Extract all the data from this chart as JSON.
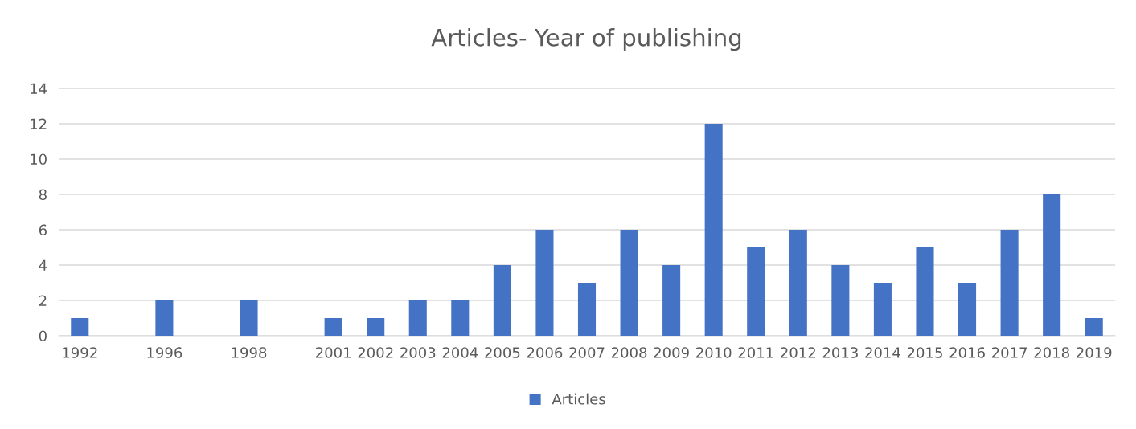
{
  "chart_data": {
    "type": "bar",
    "title": "Articles- Year of publishing",
    "categories": [
      "1992",
      null,
      "1996",
      null,
      "1998",
      null,
      "2001",
      "2002",
      "2003",
      "2004",
      "2005",
      "2006",
      "2007",
      "2008",
      "2009",
      "2010",
      "2011",
      "2012",
      "2013",
      "2014",
      "2015",
      "2016",
      "2017",
      "2018",
      "2019"
    ],
    "series": [
      {
        "name": "Articles",
        "color": "#4472c4",
        "values": [
          1,
          null,
          2,
          null,
          2,
          null,
          1,
          1,
          2,
          2,
          4,
          6,
          3,
          6,
          4,
          12,
          5,
          6,
          4,
          3,
          5,
          3,
          6,
          8,
          1
        ]
      }
    ],
    "ylim": [
      0,
      14
    ],
    "yticks": [
      0,
      2,
      4,
      6,
      8,
      10,
      12,
      14
    ],
    "grid": "y",
    "legend": "bottom"
  }
}
